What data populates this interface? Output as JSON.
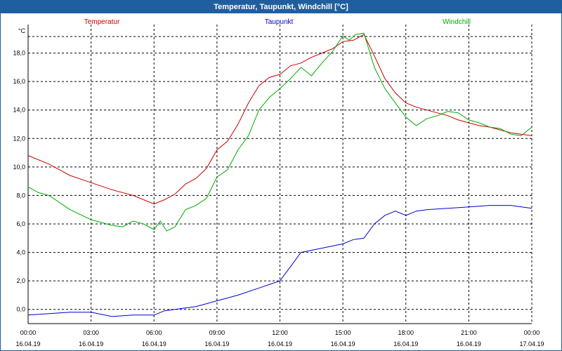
{
  "window": {
    "title": "Temperatur, Taupunkt, Windchill [°C]"
  },
  "chart_data": {
    "type": "line",
    "title": "Temperatur, Taupunkt, Windchill [°C]",
    "ylabel": "°C",
    "xlabel": "",
    "ylim": [
      -1,
      20
    ],
    "xlim": [
      0,
      24
    ],
    "grid": true,
    "y_ticks": [
      "0,0",
      "2,0",
      "4,0",
      "6,0",
      "8,0",
      "10,0",
      "12,0",
      "14,0",
      "16,0",
      "18,0"
    ],
    "y_tick_values": [
      0,
      2,
      4,
      6,
      8,
      10,
      12,
      14,
      16,
      18
    ],
    "x_ticks": [
      {
        "hour": 0,
        "time": "00:00",
        "date": "16.04.19"
      },
      {
        "hour": 3,
        "time": "03:00",
        "date": "16.04.19"
      },
      {
        "hour": 6,
        "time": "06:00",
        "date": "16.04.19"
      },
      {
        "hour": 9,
        "time": "09:00",
        "date": "16.04.19"
      },
      {
        "hour": 12,
        "time": "12:00",
        "date": "16.04.19"
      },
      {
        "hour": 15,
        "time": "15:00",
        "date": "16.04.19"
      },
      {
        "hour": 18,
        "time": "18:00",
        "date": "16.04.19"
      },
      {
        "hour": 21,
        "time": "21:00",
        "date": "16.04.19"
      },
      {
        "hour": 24,
        "time": "00:00",
        "date": "17.04.19"
      }
    ],
    "series": [
      {
        "name": "Temperatur",
        "color": "#cc0000",
        "x": [
          0,
          1,
          1.5,
          2,
          3,
          4,
          5,
          6,
          6.5,
          7,
          7.5,
          8,
          8.5,
          9,
          9.5,
          10,
          10.5,
          11,
          11.5,
          12,
          12.5,
          13,
          13.5,
          14,
          14.5,
          15,
          15.5,
          16,
          16.5,
          17,
          17.5,
          18,
          18.5,
          19,
          19.5,
          20,
          20.5,
          21,
          21.5,
          22,
          22.5,
          23,
          23.5,
          24
        ],
        "values": [
          10.8,
          10.2,
          9.8,
          9.4,
          8.9,
          8.4,
          8.0,
          7.4,
          7.7,
          8.1,
          8.8,
          9.2,
          9.9,
          11.2,
          11.8,
          13.0,
          14.5,
          15.7,
          16.3,
          16.5,
          17.1,
          17.3,
          17.7,
          18.0,
          18.3,
          18.8,
          18.9,
          19.3,
          17.8,
          16.2,
          15.2,
          14.5,
          14.2,
          14.0,
          13.8,
          13.6,
          13.3,
          13.1,
          12.9,
          12.8,
          12.6,
          12.4,
          12.3,
          12.2
        ]
      },
      {
        "name": "Taupunkt",
        "color": "#0000cc",
        "x": [
          0,
          1,
          2,
          3,
          4,
          5,
          6,
          6.5,
          7,
          8,
          9,
          10,
          11,
          12,
          12.5,
          13,
          14,
          15,
          15.5,
          16,
          16.5,
          17,
          17.5,
          18,
          18.5,
          19,
          20,
          21,
          22,
          23,
          24
        ],
        "values": [
          -0.4,
          -0.3,
          -0.2,
          -0.2,
          -0.5,
          -0.4,
          -0.4,
          -0.1,
          0.0,
          0.2,
          0.6,
          1.0,
          1.5,
          2.0,
          3.0,
          4.0,
          4.3,
          4.6,
          4.9,
          5.0,
          6.0,
          6.6,
          6.9,
          6.6,
          6.9,
          7.0,
          7.1,
          7.2,
          7.3,
          7.3,
          7.1
        ]
      },
      {
        "name": "Windchill",
        "color": "#00aa00",
        "x": [
          0,
          0.5,
          1,
          1.5,
          2,
          3,
          3.5,
          4,
          4.5,
          5,
          5.5,
          6,
          6.3,
          6.6,
          7,
          7.5,
          8,
          8.5,
          9,
          9.5,
          10,
          10.5,
          11,
          11.5,
          12,
          12.5,
          13,
          13.5,
          14,
          14.5,
          15,
          15.3,
          15.6,
          16,
          16.5,
          17,
          17.5,
          18,
          18.5,
          19,
          19.5,
          20,
          20.5,
          21,
          21.5,
          22,
          22.5,
          23,
          23.5,
          24
        ],
        "values": [
          8.6,
          8.2,
          8.0,
          7.5,
          7.0,
          6.3,
          6.1,
          5.9,
          5.8,
          6.2,
          6.0,
          5.6,
          6.2,
          5.5,
          5.8,
          7.0,
          7.3,
          7.8,
          9.3,
          9.8,
          11.2,
          12.2,
          14.0,
          14.9,
          15.5,
          16.2,
          17.0,
          16.4,
          17.3,
          18.1,
          19.2,
          18.9,
          19.3,
          19.4,
          17.0,
          15.5,
          14.5,
          13.5,
          12.9,
          13.4,
          13.6,
          13.9,
          13.8,
          13.3,
          13.1,
          12.8,
          12.7,
          12.3,
          12.2,
          12.8
        ]
      }
    ]
  }
}
